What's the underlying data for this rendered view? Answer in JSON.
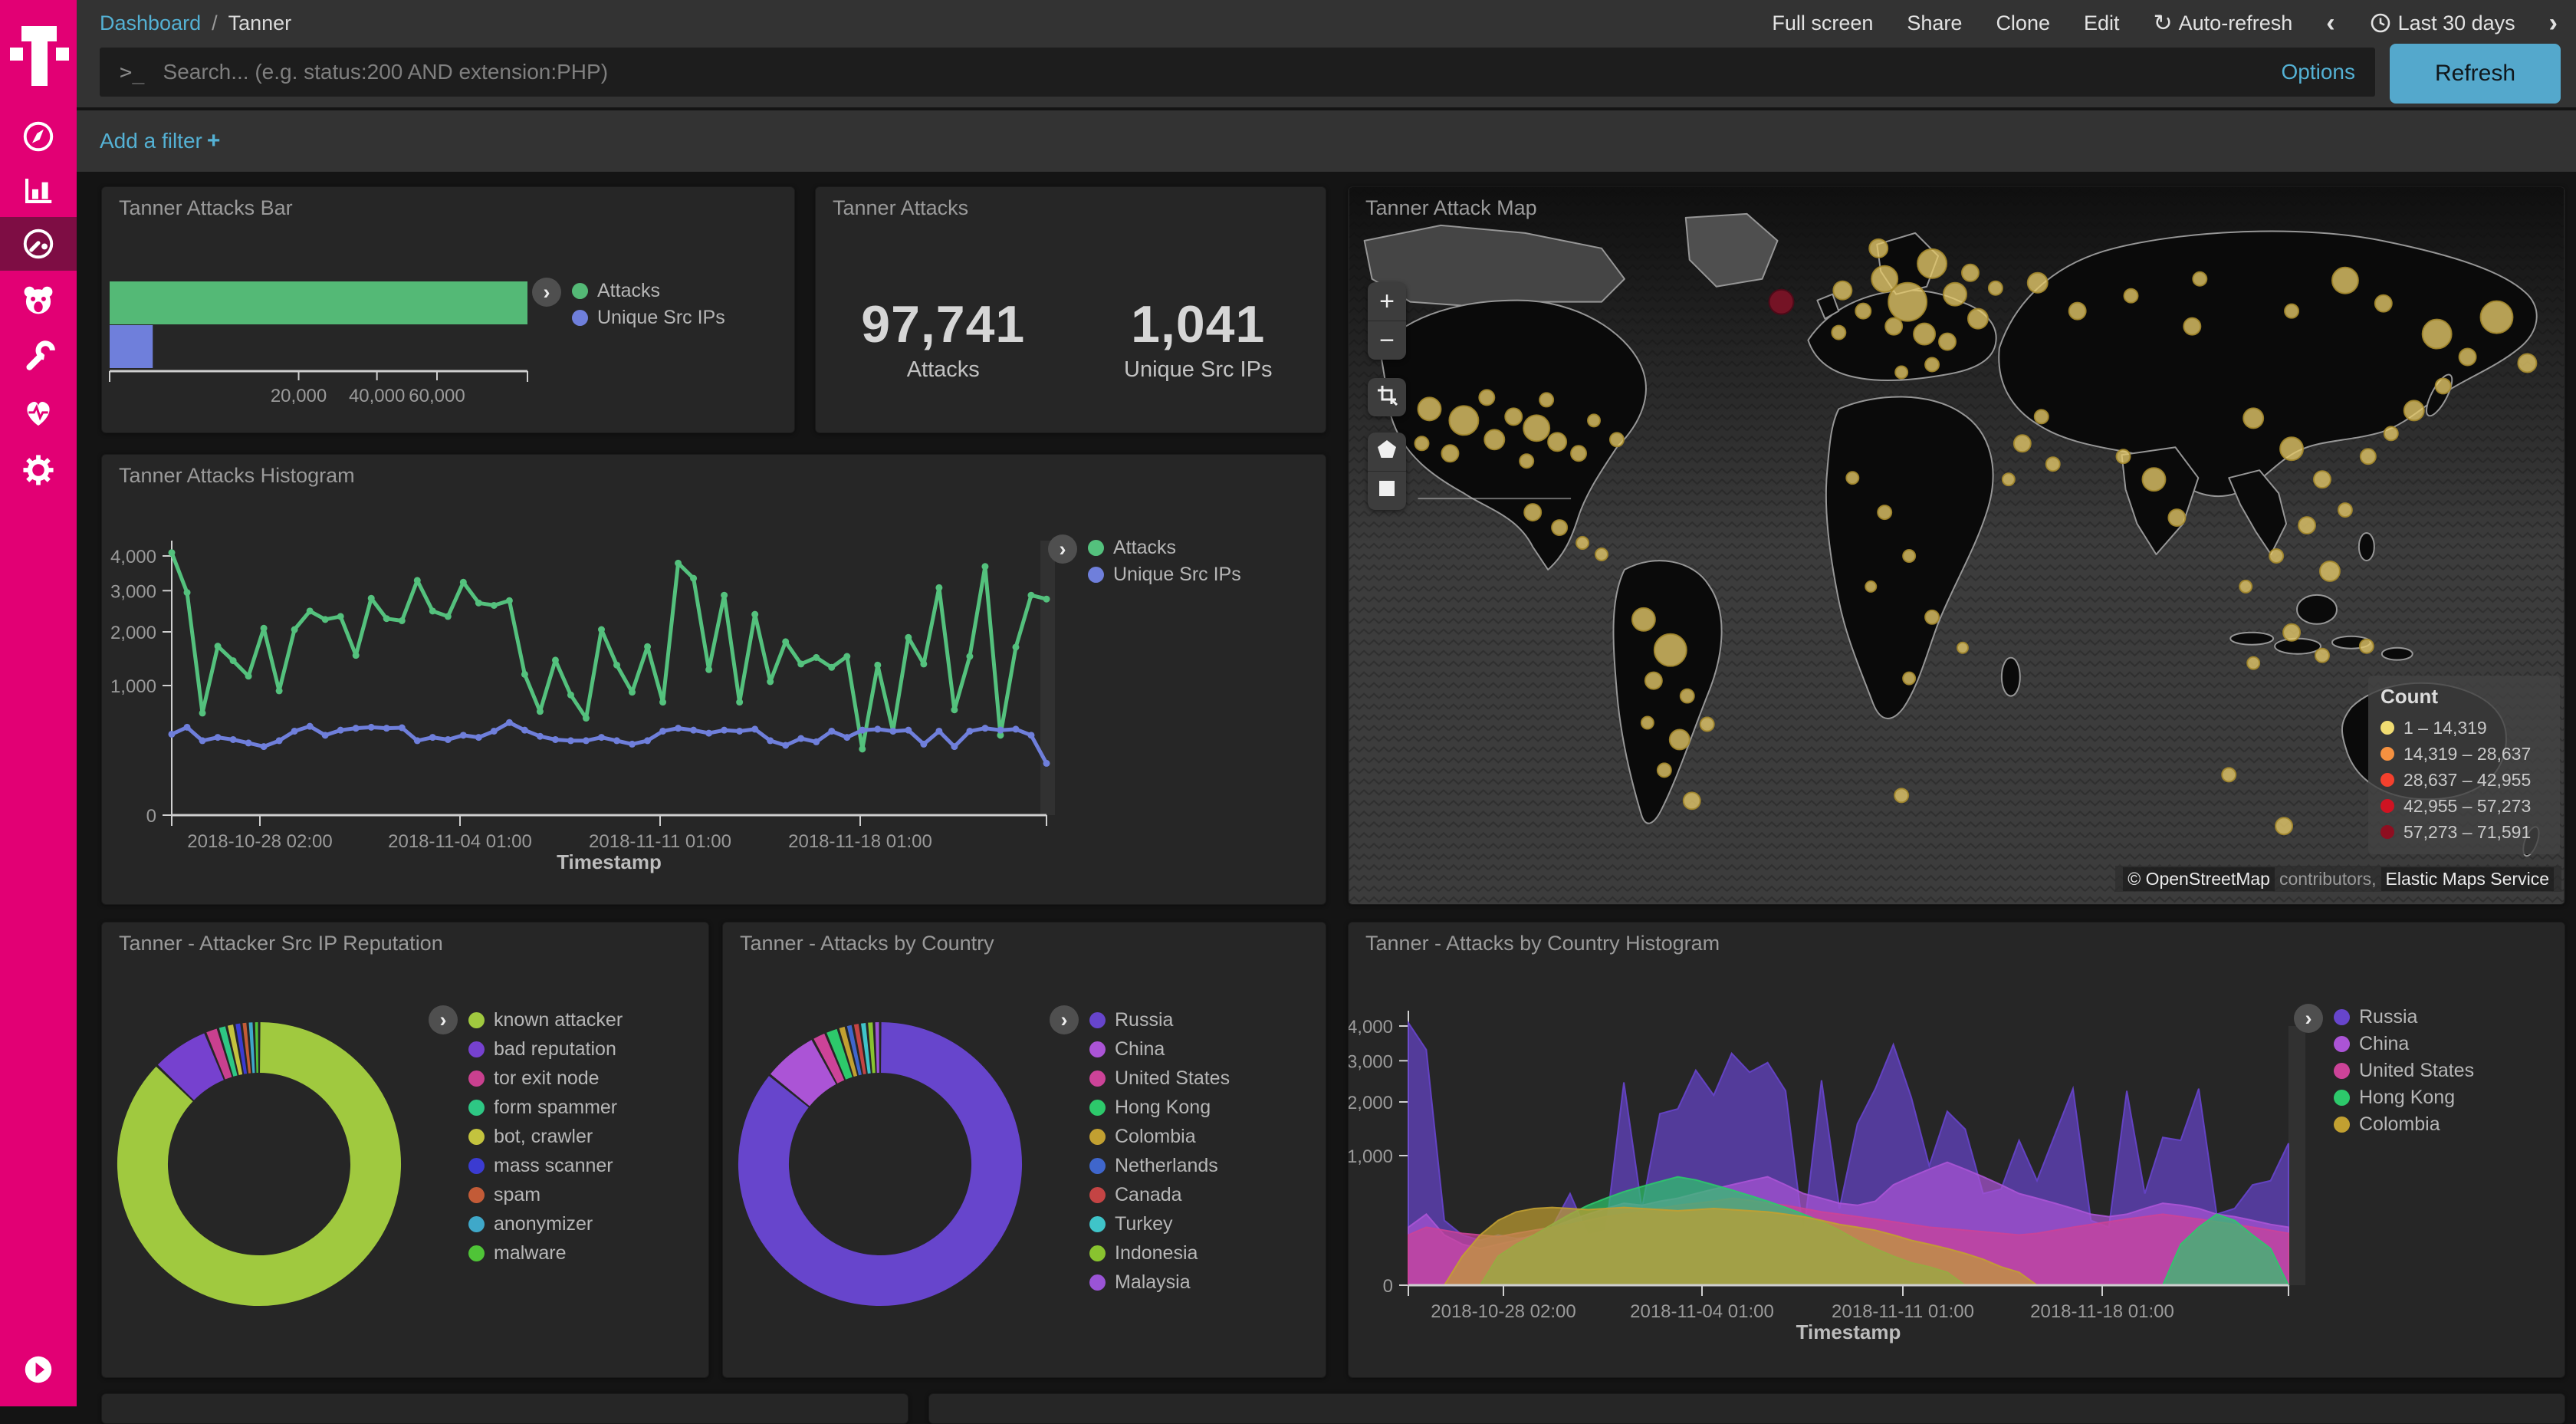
{
  "topbar": {
    "breadcrumb": {
      "link": "Dashboard",
      "separator": "/",
      "current": "Tanner"
    },
    "items": [
      "Full screen",
      "Share",
      "Clone",
      "Edit"
    ],
    "auto_refresh": "Auto-refresh",
    "time_range": "Last 30 days",
    "prev_icon": "‹",
    "next_icon": "›",
    "refresh_icon": "↻"
  },
  "search": {
    "prompt": ">_",
    "placeholder": "Search... (e.g. status:200 AND extension:PHP)",
    "options_label": "Options",
    "refresh_label": "Refresh"
  },
  "filter_bar": {
    "add_filter_label": "Add a filter",
    "plus": "+"
  },
  "sidebar": {
    "brand": "T-Mobile",
    "items": [
      "Discover",
      "Visualize",
      "Dashboard",
      "Timelion",
      "Dev Tools",
      "Monitoring",
      "Management"
    ],
    "active": "Dashboard"
  },
  "map": {
    "attribution": {
      "copyright": "© OpenStreetMap",
      "middle": "contributors,",
      "service": "Elastic Maps Service"
    },
    "controls": {
      "zoom_in": "+",
      "zoom_out": "−"
    }
  },
  "chart_data": [
    {
      "id": "bar",
      "type": "bar",
      "title": "Tanner Attacks Bar",
      "orientation": "horizontal",
      "scale": "square root",
      "xmax": 97741,
      "x_ticks": [
        "20,000",
        "40,000",
        "60,000"
      ],
      "x_tick_values": [
        20000,
        40000,
        60000
      ],
      "series": [
        {
          "name": "Attacks",
          "value": 97741,
          "color": "#54b976"
        },
        {
          "name": "Unique Src IPs",
          "value": 1041,
          "color": "#6f7fdb"
        }
      ]
    },
    {
      "id": "metric",
      "type": "metric",
      "title": "Tanner Attacks",
      "items": [
        {
          "value": "97,741",
          "label": "Attacks"
        },
        {
          "value": "1,041",
          "label": "Unique Src IPs"
        }
      ]
    },
    {
      "id": "map",
      "type": "map",
      "title": "Tanner Attack Map",
      "legend_title": "Count",
      "legend": [
        {
          "range": "1 – 14,319",
          "color": "#f0dc72"
        },
        {
          "range": "14,319 – 28,637",
          "color": "#f59140"
        },
        {
          "range": "28,637 – 42,955",
          "color": "#f4402d"
        },
        {
          "range": "42,955 – 57,273",
          "color": "#cf1322"
        },
        {
          "range": "57,273 – 71,591",
          "color": "#8e0e20"
        }
      ],
      "point_color": "#e7cb6a",
      "high_count_point": [
        565,
        150,
        16
      ],
      "points": [
        [
          105,
          290,
          15
        ],
        [
          150,
          305,
          19
        ],
        [
          190,
          330,
          13
        ],
        [
          215,
          300,
          11
        ],
        [
          245,
          315,
          17
        ],
        [
          272,
          333,
          12
        ],
        [
          300,
          348,
          10
        ],
        [
          132,
          348,
          11
        ],
        [
          95,
          335,
          9
        ],
        [
          232,
          358,
          9
        ],
        [
          320,
          305,
          8
        ],
        [
          258,
          278,
          9
        ],
        [
          350,
          330,
          9
        ],
        [
          180,
          275,
          10
        ],
        [
          240,
          425,
          11
        ],
        [
          275,
          445,
          10
        ],
        [
          305,
          465,
          8
        ],
        [
          330,
          480,
          8
        ],
        [
          385,
          565,
          15
        ],
        [
          420,
          605,
          21
        ],
        [
          398,
          645,
          11
        ],
        [
          442,
          665,
          9
        ],
        [
          432,
          722,
          13
        ],
        [
          468,
          702,
          9
        ],
        [
          412,
          762,
          9
        ],
        [
          448,
          802,
          11
        ],
        [
          390,
          700,
          8
        ],
        [
          645,
          135,
          12
        ],
        [
          672,
          162,
          10
        ],
        [
          700,
          120,
          17
        ],
        [
          730,
          150,
          25
        ],
        [
          762,
          100,
          19
        ],
        [
          792,
          140,
          15
        ],
        [
          822,
          172,
          13
        ],
        [
          752,
          192,
          14
        ],
        [
          712,
          182,
          11
        ],
        [
          782,
          202,
          11
        ],
        [
          812,
          112,
          11
        ],
        [
          845,
          132,
          9
        ],
        [
          762,
          232,
          9
        ],
        [
          722,
          242,
          8
        ],
        [
          692,
          80,
          12
        ],
        [
          640,
          190,
          9
        ],
        [
          700,
          425,
          9
        ],
        [
          732,
          482,
          8
        ],
        [
          682,
          522,
          7
        ],
        [
          762,
          562,
          9
        ],
        [
          802,
          602,
          7
        ],
        [
          732,
          642,
          8
        ],
        [
          658,
          380,
          8
        ],
        [
          722,
          795,
          9
        ],
        [
          880,
          335,
          11
        ],
        [
          920,
          362,
          9
        ],
        [
          862,
          382,
          8
        ],
        [
          905,
          300,
          9
        ],
        [
          900,
          125,
          13
        ],
        [
          952,
          162,
          11
        ],
        [
          1022,
          142,
          9
        ],
        [
          1102,
          182,
          11
        ],
        [
          1232,
          162,
          9
        ],
        [
          1302,
          122,
          17
        ],
        [
          1352,
          152,
          11
        ],
        [
          1422,
          192,
          19
        ],
        [
          1462,
          222,
          11
        ],
        [
          1112,
          120,
          9
        ],
        [
          1500,
          170,
          21
        ],
        [
          1540,
          230,
          12
        ],
        [
          1052,
          382,
          15
        ],
        [
          1082,
          432,
          11
        ],
        [
          1012,
          352,
          9
        ],
        [
          1182,
          302,
          13
        ],
        [
          1232,
          342,
          15
        ],
        [
          1272,
          382,
          11
        ],
        [
          1302,
          422,
          9
        ],
        [
          1252,
          442,
          11
        ],
        [
          1212,
          482,
          9
        ],
        [
          1172,
          522,
          8
        ],
        [
          1282,
          502,
          13
        ],
        [
          1332,
          352,
          10
        ],
        [
          1232,
          582,
          11
        ],
        [
          1272,
          612,
          9
        ],
        [
          1182,
          622,
          8
        ],
        [
          1330,
          600,
          9
        ],
        [
          1392,
          292,
          13
        ],
        [
          1362,
          322,
          9
        ],
        [
          1430,
          260,
          10
        ],
        [
          1222,
          835,
          11
        ],
        [
          1150,
          768,
          9
        ]
      ]
    },
    {
      "id": "line",
      "type": "line",
      "title": "Tanner Attacks Histogram",
      "xlabel": "Timestamp",
      "scale": "square root",
      "ylim": [
        0,
        4400
      ],
      "x_ticks": [
        "2018-10-28 02:00",
        "2018-11-04 01:00",
        "2018-11-11 01:00",
        "2018-11-18 01:00"
      ],
      "y_ticks": [
        "0",
        "1,000",
        "2,000",
        "3,000",
        "4,000"
      ],
      "y_tick_values": [
        0,
        1000,
        2000,
        3000,
        4000
      ],
      "series": [
        {
          "name": "Attacks",
          "color": "#54c17d",
          "values": [
            4100,
            2950,
            620,
            1700,
            1420,
            1150,
            2080,
            920,
            2050,
            2480,
            2280,
            2350,
            1520,
            2800,
            2300,
            2250,
            3280,
            2480,
            2350,
            3230,
            2680,
            2620,
            2740,
            1180,
            640,
            1430,
            860,
            560,
            2050,
            1340,
            900,
            1690,
            760,
            3780,
            3340,
            1260,
            2880,
            760,
            2400,
            1060,
            1790,
            1360,
            1480,
            1300,
            1500,
            260,
            1340,
            420,
            1880,
            1360,
            3080,
            660,
            1500,
            3680,
            380,
            1680,
            2880,
            2780
          ]
        },
        {
          "name": "Unique Src IPs",
          "color": "#6f7fdb",
          "values": [
            390,
            460,
            330,
            360,
            340,
            310,
            280,
            330,
            420,
            470,
            380,
            430,
            450,
            460,
            450,
            455,
            330,
            360,
            340,
            380,
            360,
            420,
            510,
            430,
            370,
            340,
            330,
            330,
            360,
            330,
            300,
            330,
            420,
            450,
            430,
            400,
            430,
            420,
            440,
            330,
            290,
            350,
            320,
            420,
            360,
            430,
            440,
            420,
            430,
            300,
            420,
            280,
            420,
            450,
            430,
            440,
            380,
            160
          ]
        }
      ]
    },
    {
      "id": "pie1",
      "type": "pie",
      "title": "Tanner - Attacker Src IP Reputation",
      "donut": true,
      "slices": [
        {
          "label": "known attacker",
          "percent": 87.2,
          "color": "#a0c93f"
        },
        {
          "label": "bad reputation",
          "percent": 6.6,
          "color": "#7641cf"
        },
        {
          "label": "tor exit node",
          "percent": 1.5,
          "color": "#c9408f"
        },
        {
          "label": "form spammer",
          "percent": 1.0,
          "color": "#2ec784"
        },
        {
          "label": "bot, crawler",
          "percent": 0.9,
          "color": "#c3c33e"
        },
        {
          "label": "mass scanner",
          "percent": 0.8,
          "color": "#3b3bd1"
        },
        {
          "label": "spam",
          "percent": 0.7,
          "color": "#c35b37"
        },
        {
          "label": "anonymizer",
          "percent": 0.7,
          "color": "#3fa8c9"
        },
        {
          "label": "malware",
          "percent": 0.6,
          "color": "#4fc437"
        }
      ]
    },
    {
      "id": "pie2",
      "type": "pie",
      "title": "Tanner - Attacks by Country",
      "donut": true,
      "slices": [
        {
          "label": "Russia",
          "percent": 85.8,
          "color": "#6745cc"
        },
        {
          "label": "China",
          "percent": 6.3,
          "color": "#ab54d6"
        },
        {
          "label": "United States",
          "percent": 1.6,
          "color": "#cc4398"
        },
        {
          "label": "Hong Kong",
          "percent": 1.5,
          "color": "#2dc96b"
        },
        {
          "label": "Colombia",
          "percent": 0.9,
          "color": "#c2a031"
        },
        {
          "label": "Netherlands",
          "percent": 0.8,
          "color": "#3f66cc"
        },
        {
          "label": "Canada",
          "percent": 0.8,
          "color": "#c44444"
        },
        {
          "label": "Turkey",
          "percent": 0.8,
          "color": "#3fc4c9"
        },
        {
          "label": "Indonesia",
          "percent": 0.8,
          "color": "#89c32f"
        },
        {
          "label": "Malaysia",
          "percent": 0.7,
          "color": "#9a54d6"
        }
      ]
    },
    {
      "id": "area",
      "type": "area",
      "title": "Tanner - Attacks by Country Histogram",
      "xlabel": "Timestamp",
      "scale": "square root",
      "ylim": [
        0,
        4400
      ],
      "x_ticks": [
        "2018-10-28 02:00",
        "2018-11-04 01:00",
        "2018-11-11 01:00",
        "2018-11-18 01:00"
      ],
      "y_ticks": [
        "0",
        "1,000",
        "2,000",
        "3,000",
        "4,000"
      ],
      "y_tick_values": [
        0,
        1000,
        2000,
        3000,
        4000
      ],
      "series": [
        {
          "name": "Russia",
          "color": "#6745cc",
          "values": [
            4100,
            3300,
            250,
            150,
            120,
            150,
            130,
            140,
            200,
            500,
            150,
            180,
            2450,
            350,
            1750,
            1850,
            2750,
            2150,
            3200,
            2700,
            2950,
            2250,
            150,
            2500,
            350,
            1550,
            2300,
            3450,
            2100,
            850,
            1800,
            1450,
            500,
            550,
            1250,
            650,
            1350,
            2300,
            250,
            200,
            2250,
            500,
            1300,
            1250,
            2300,
            300,
            350,
            600,
            650,
            1200
          ]
        },
        {
          "name": "China",
          "color": "#ab54d6",
          "values": [
            200,
            300,
            150,
            100,
            80,
            100,
            120,
            150,
            200,
            250,
            300,
            350,
            400,
            380,
            420,
            450,
            500,
            550,
            600,
            650,
            700,
            600,
            500,
            450,
            400,
            380,
            420,
            600,
            700,
            800,
            900,
            800,
            700,
            600,
            500,
            450,
            400,
            350,
            300,
            280,
            300,
            350,
            400,
            380,
            350,
            300,
            280,
            250,
            220,
            200
          ]
        },
        {
          "name": "United States",
          "color": "#cc4398",
          "values": [
            150,
            200,
            180,
            160,
            150,
            140,
            160,
            180,
            200,
            220,
            250,
            280,
            300,
            320,
            350,
            380,
            400,
            420,
            450,
            430,
            400,
            380,
            350,
            320,
            300,
            280,
            260,
            240,
            220,
            200,
            190,
            180,
            170,
            160,
            150,
            160,
            180,
            200,
            220,
            240,
            260,
            280,
            300,
            280,
            260,
            240,
            220,
            200,
            180,
            160
          ]
        },
        {
          "name": "Hong Kong",
          "color": "#2dc96b",
          "values": [
            0,
            0,
            0,
            0,
            0,
            50,
            100,
            150,
            220,
            300,
            380,
            450,
            520,
            580,
            640,
            700,
            660,
            600,
            540,
            480,
            420,
            360,
            300,
            240,
            180,
            120,
            80,
            50,
            30,
            20,
            10,
            0,
            0,
            0,
            0,
            0,
            0,
            0,
            0,
            0,
            0,
            0,
            0,
            100,
            200,
            300,
            250,
            150,
            80,
            0
          ]
        },
        {
          "name": "Colombia",
          "color": "#c2a031",
          "values": [
            0,
            0,
            0,
            50,
            150,
            250,
            320,
            350,
            360,
            350,
            340,
            350,
            360,
            350,
            340,
            330,
            340,
            350,
            340,
            330,
            320,
            300,
            280,
            250,
            220,
            200,
            180,
            150,
            120,
            100,
            80,
            60,
            40,
            20,
            10,
            0,
            0,
            0,
            0,
            0,
            0,
            0,
            0,
            0,
            0,
            0,
            0,
            0,
            0,
            0
          ]
        }
      ]
    }
  ]
}
